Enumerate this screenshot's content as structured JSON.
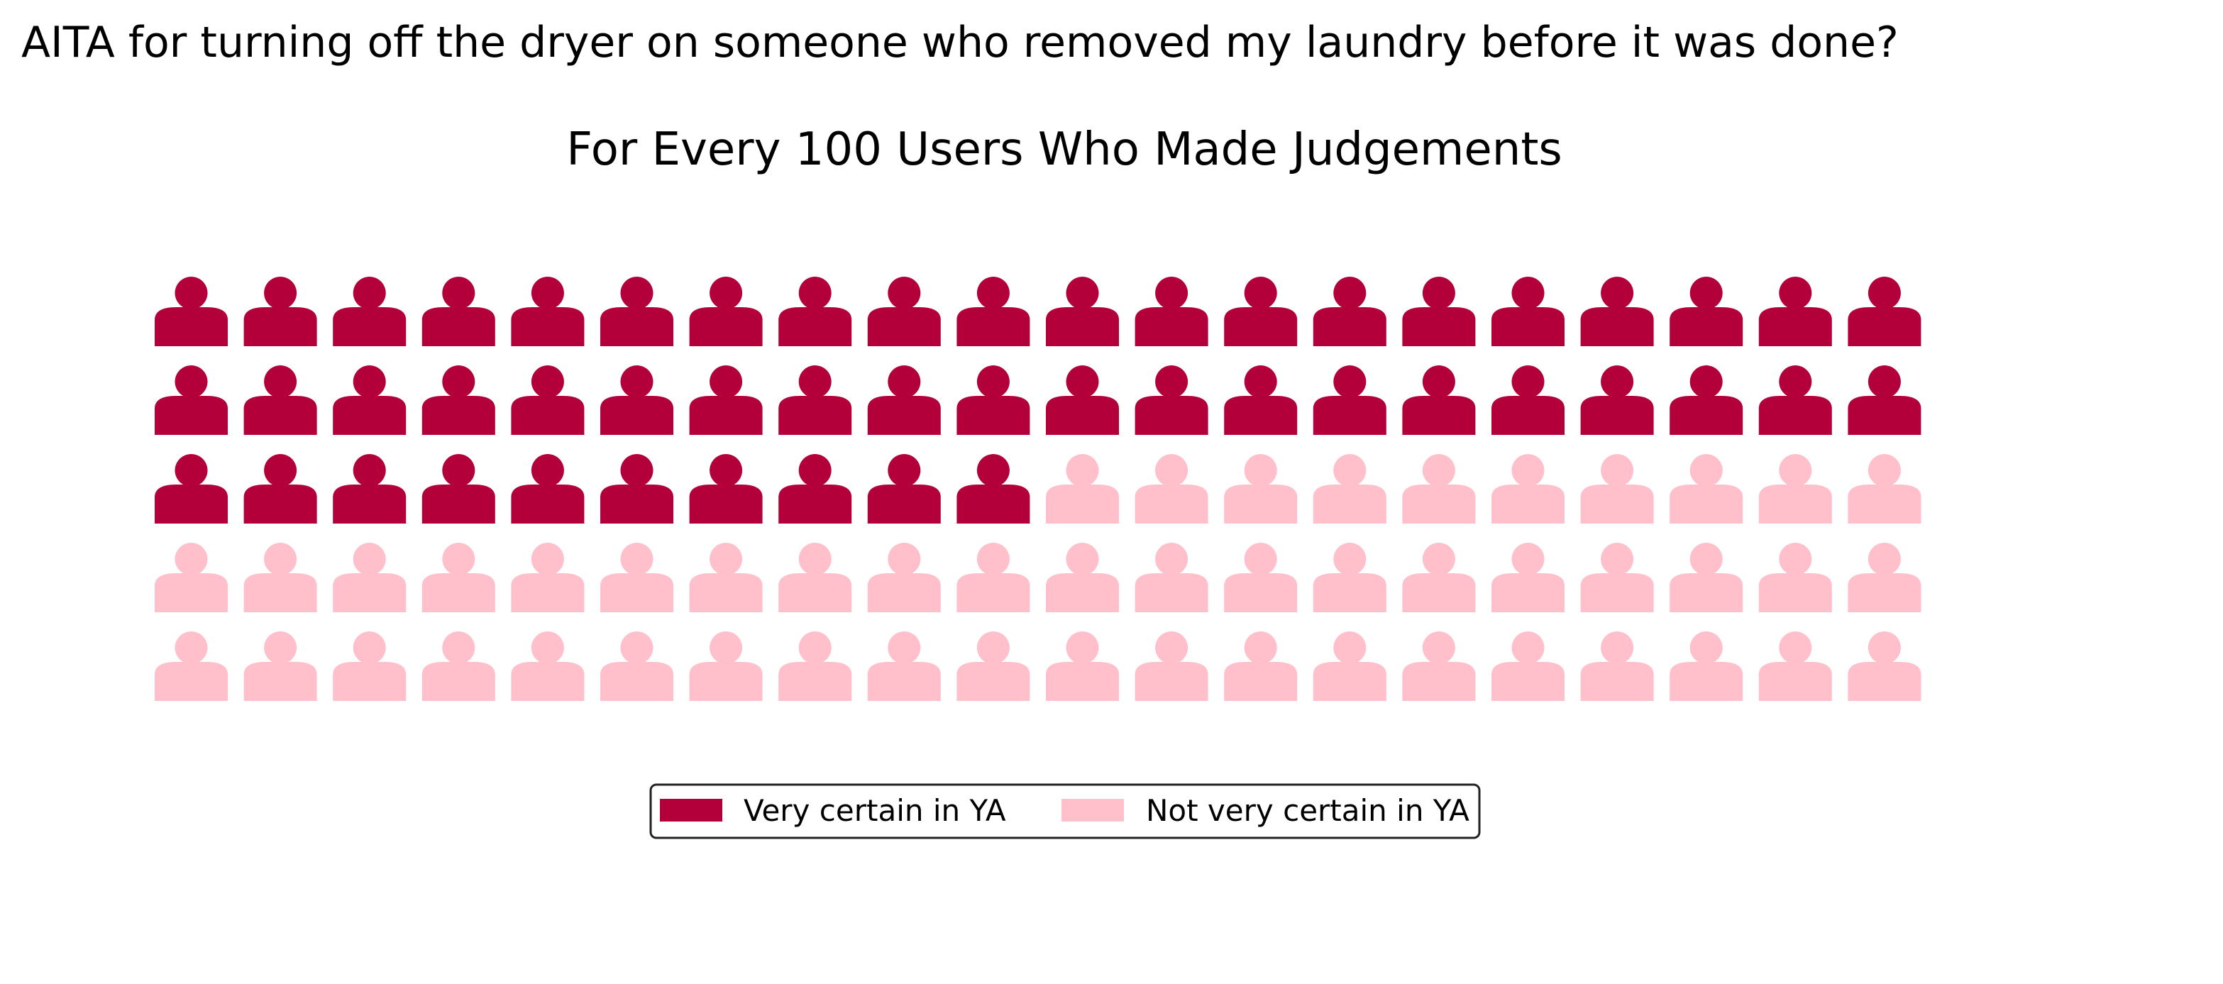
{
  "colors": {
    "very_certain": "#b3003a",
    "not_very_certain": "#ffc0cb",
    "legend_border": "#222222"
  },
  "chart_data": {
    "type": "waffle",
    "title": "AITA for turning off the dryer on someone who removed my laundry before it was done?",
    "subtitle": "For Every 100 Users Who Made Judgements",
    "grid": {
      "rows": 5,
      "columns": 20
    },
    "icon": "person-icon",
    "categories": [
      {
        "name": "Very certain in YA",
        "value": 50,
        "color": "#b3003a"
      },
      {
        "name": "Not very certain in YA",
        "value": 50,
        "color": "#ffc0cb"
      }
    ],
    "legend_position": "bottom-center"
  }
}
